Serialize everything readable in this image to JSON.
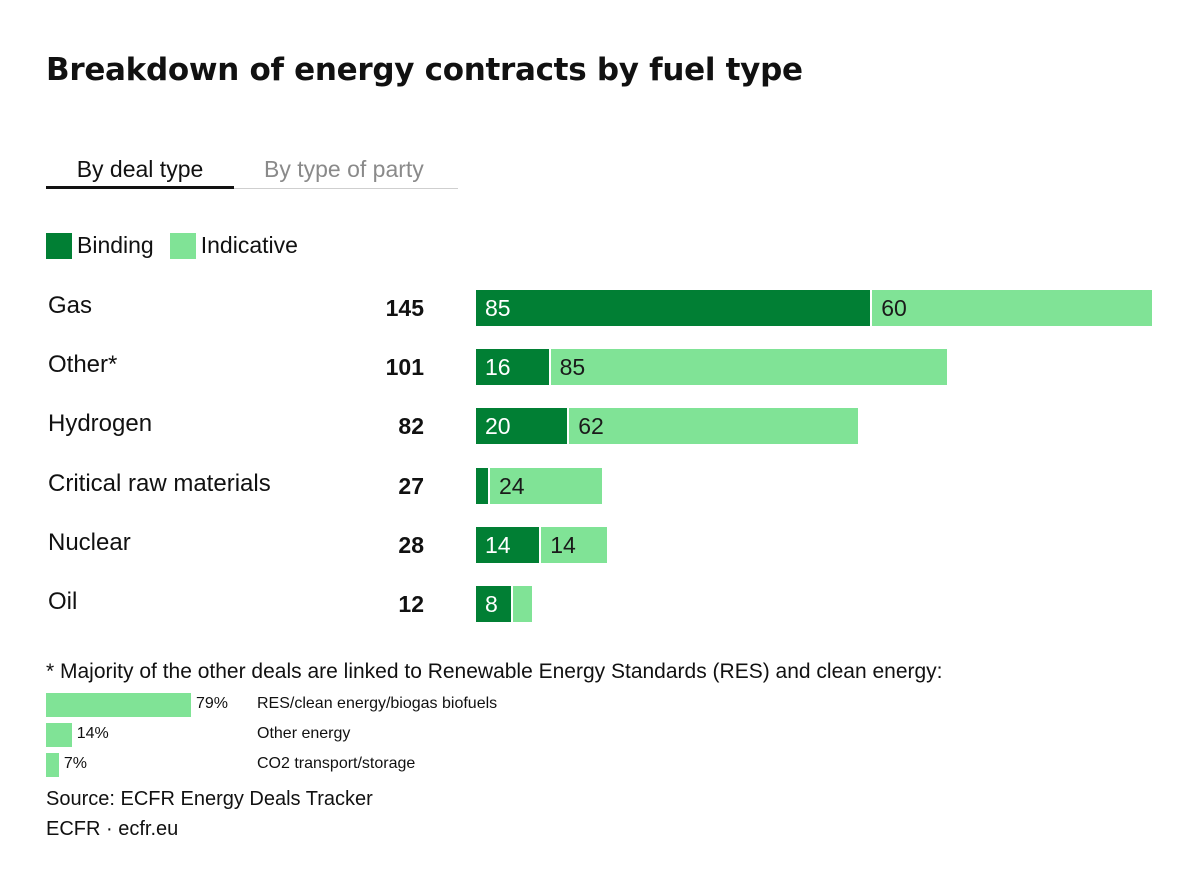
{
  "title": "Breakdown of energy contracts by fuel type",
  "tabs": [
    {
      "label": "By deal type",
      "active": true
    },
    {
      "label": "By type of party",
      "active": false
    }
  ],
  "colors": {
    "binding": "#017f34",
    "indicative": "#80e396"
  },
  "chart_data": {
    "type": "bar",
    "orientation": "horizontal",
    "stacked": true,
    "categories": [
      "Gas",
      "Other*",
      "Hydrogen",
      "Critical raw materials",
      "Nuclear",
      "Oil"
    ],
    "totals": [
      "145",
      "101",
      "82",
      "27",
      "28",
      "12"
    ],
    "series": [
      {
        "name": "Binding",
        "values": [
          85,
          16,
          20,
          3,
          14,
          8
        ],
        "labels": [
          "85",
          "16",
          "20",
          "",
          "14",
          "8"
        ]
      },
      {
        "name": "Indicative",
        "values": [
          60,
          85,
          62,
          24,
          14,
          4
        ],
        "labels": [
          "60",
          "85",
          "62",
          "24",
          "14",
          ""
        ]
      }
    ],
    "xlim": [
      0,
      145
    ],
    "legend": "top-left"
  },
  "footnote": {
    "text": "* Majority of the other deals are linked to Renewable Energy Standards (RES) and clean energy:",
    "items": [
      {
        "pct": "79%",
        "value": 79,
        "label": "RES/clean energy/biogas biofuels"
      },
      {
        "pct": "14%",
        "value": 14,
        "label": "Other energy"
      },
      {
        "pct": "7%",
        "value": 7,
        "label": "CO2 transport/storage"
      }
    ]
  },
  "source": "Source: ECFR Energy Deals Tracker",
  "credit": "ECFR · ecfr.eu"
}
